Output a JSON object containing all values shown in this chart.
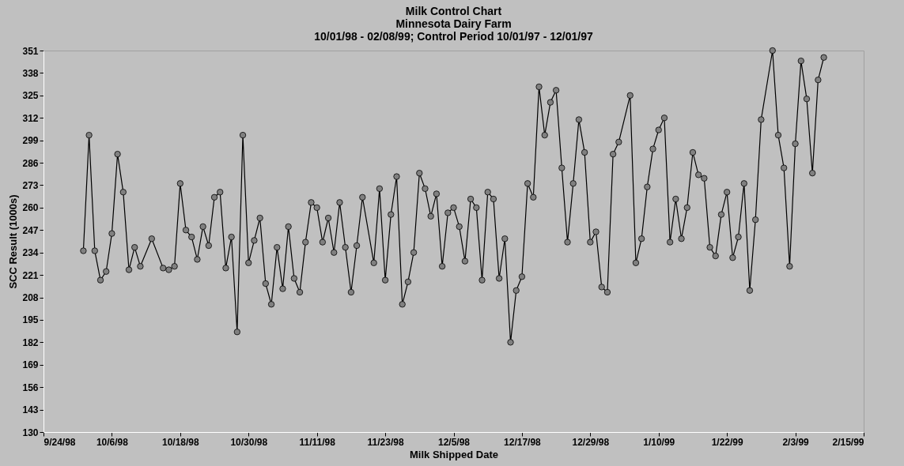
{
  "chart_data": {
    "type": "line",
    "title": "Milk Control Chart",
    "subtitle": "Minnesota Dairy Farm",
    "annotations": [
      "10/01/98 - 02/08/99;  Control Period 10/01/97 - 12/01/97"
    ],
    "xlabel": "Milk Shipped Date",
    "ylabel": "SCC Result (1000s)",
    "x": [
      "1998-10-01",
      "1998-10-02",
      "1998-10-03",
      "1998-10-04",
      "1998-10-05",
      "1998-10-06",
      "1998-10-07",
      "1998-10-08",
      "1998-10-09",
      "1998-10-10",
      "1998-10-11",
      "1998-10-13",
      "1998-10-15",
      "1998-10-16",
      "1998-10-17",
      "1998-10-18",
      "1998-10-19",
      "1998-10-20",
      "1998-10-21",
      "1998-10-22",
      "1998-10-23",
      "1998-10-24",
      "1998-10-25",
      "1998-10-26",
      "1998-10-27",
      "1998-10-28",
      "1998-10-29",
      "1998-10-30",
      "1998-10-31",
      "1998-11-01",
      "1998-11-02",
      "1998-11-03",
      "1998-11-04",
      "1998-11-05",
      "1998-11-06",
      "1998-11-07",
      "1998-11-08",
      "1998-11-09",
      "1998-11-10",
      "1998-11-11",
      "1998-11-12",
      "1998-11-13",
      "1998-11-14",
      "1998-11-15",
      "1998-11-16",
      "1998-11-17",
      "1998-11-18",
      "1998-11-19",
      "1998-11-21",
      "1998-11-22",
      "1998-11-23",
      "1998-11-24",
      "1998-11-25",
      "1998-11-26",
      "1998-11-27",
      "1998-11-28",
      "1998-11-29",
      "1998-11-30",
      "1998-12-01",
      "1998-12-02",
      "1998-12-03",
      "1998-12-04",
      "1998-12-05",
      "1998-12-06",
      "1998-12-07",
      "1998-12-08",
      "1998-12-09",
      "1998-12-10",
      "1998-12-11",
      "1998-12-12",
      "1998-12-13",
      "1998-12-14",
      "1998-12-15",
      "1998-12-16",
      "1998-12-17",
      "1998-12-18",
      "1998-12-19",
      "1998-12-20",
      "1998-12-21",
      "1998-12-22",
      "1998-12-23",
      "1998-12-24",
      "1998-12-25",
      "1998-12-26",
      "1998-12-27",
      "1998-12-28",
      "1998-12-29",
      "1998-12-30",
      "1998-12-31",
      "1999-01-01",
      "1999-01-02",
      "1999-01-03",
      "1999-01-05",
      "1999-01-06",
      "1999-01-07",
      "1999-01-08",
      "1999-01-09",
      "1999-01-10",
      "1999-01-11",
      "1999-01-12",
      "1999-01-13",
      "1999-01-14",
      "1999-01-15",
      "1999-01-16",
      "1999-01-17",
      "1999-01-18",
      "1999-01-19",
      "1999-01-20",
      "1999-01-21",
      "1999-01-22",
      "1999-01-23",
      "1999-01-24",
      "1999-01-25",
      "1999-01-26",
      "1999-01-27",
      "1999-01-28",
      "1999-01-30",
      "1999-01-31",
      "1999-02-01",
      "1999-02-02",
      "1999-02-03",
      "1999-02-04",
      "1999-02-05",
      "1999-02-06",
      "1999-02-07",
      "1999-02-08"
    ],
    "series": [
      {
        "color": "#808080",
        "values": [
          235,
          302,
          235,
          218,
          223,
          245,
          291,
          269,
          224,
          237,
          226,
          242,
          225,
          224,
          226,
          274,
          247,
          243,
          230,
          249,
          238,
          266,
          269,
          225,
          243,
          188,
          302,
          228,
          241,
          254,
          216,
          204,
          237,
          213,
          249,
          219,
          211,
          240,
          263,
          260,
          240,
          254,
          234,
          263,
          237,
          211,
          238,
          266,
          228,
          271,
          218,
          256,
          278,
          204,
          217,
          234,
          280,
          271,
          255,
          268,
          226,
          257,
          260,
          249,
          229,
          265,
          260,
          218,
          269,
          265,
          219,
          242,
          182,
          212,
          220,
          274,
          266,
          330,
          302,
          321,
          328,
          283,
          240,
          274,
          311,
          292,
          240,
          246,
          214,
          211,
          291,
          298,
          325,
          228,
          242,
          272,
          294,
          305,
          312,
          240,
          265,
          242,
          260,
          292,
          279,
          277,
          237,
          232,
          256,
          269,
          231,
          243,
          274,
          212,
          253,
          311,
          351,
          302,
          283,
          226,
          297,
          345,
          323,
          280,
          334,
          347
        ]
      }
    ],
    "xlim": [
      "1998-09-24",
      "1999-02-15"
    ],
    "xticks": [
      {
        "value": "1998-09-24",
        "label": "9/24/98"
      },
      {
        "value": "1998-10-06",
        "label": "10/6/98"
      },
      {
        "value": "1998-10-18",
        "label": "10/18/98"
      },
      {
        "value": "1998-10-30",
        "label": "10/30/98"
      },
      {
        "value": "1998-11-11",
        "label": "11/11/98"
      },
      {
        "value": "1998-11-23",
        "label": "11/23/98"
      },
      {
        "value": "1998-12-05",
        "label": "12/5/98"
      },
      {
        "value": "1998-12-17",
        "label": "12/17/98"
      },
      {
        "value": "1998-12-29",
        "label": "12/29/98"
      },
      {
        "value": "1999-01-10",
        "label": "1/10/99"
      },
      {
        "value": "1999-01-22",
        "label": "1/22/99"
      },
      {
        "value": "1999-02-03",
        "label": "2/3/99"
      },
      {
        "value": "1999-02-15",
        "label": "2/15/99"
      }
    ],
    "ylim": [
      130,
      351
    ],
    "yticks": [
      130,
      143,
      156,
      169,
      182,
      195,
      208,
      221,
      234,
      247,
      260,
      273,
      286,
      299,
      312,
      325,
      338,
      351
    ],
    "grid": false,
    "marker": "circle",
    "line_style": "solid"
  }
}
